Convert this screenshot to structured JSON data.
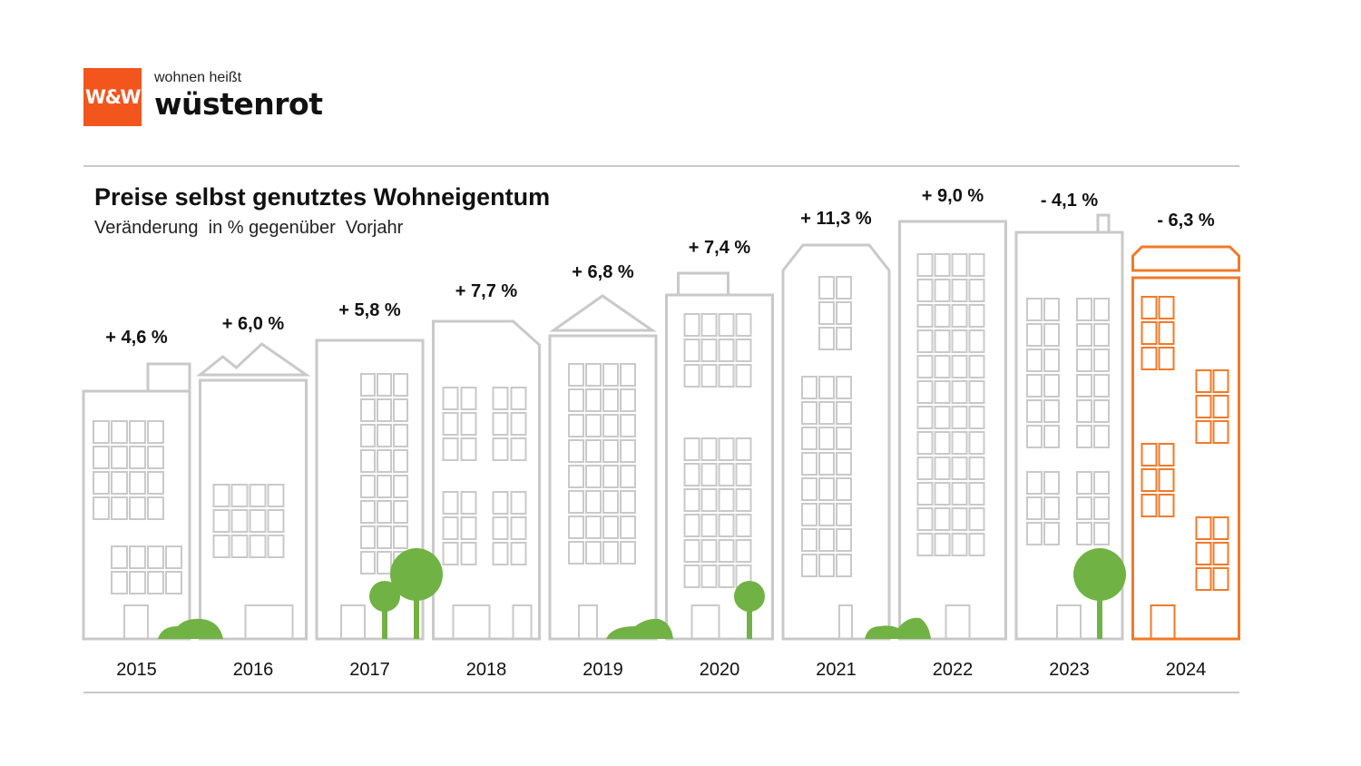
{
  "brand": {
    "tagline": "wohnen heißt",
    "name": "wüstenrot",
    "mark": "W&W",
    "color": "#f2561d"
  },
  "chart_data": {
    "type": "bar",
    "title": "Preise selbst genutztes Wohneigentum",
    "subtitle": "Veränderung  in % gegenüber  Vorjahr",
    "categories": [
      "2015",
      "2016",
      "2017",
      "2018",
      "2019",
      "2020",
      "2021",
      "2022",
      "2023",
      "2024"
    ],
    "values": [
      4.6,
      6.0,
      5.8,
      7.7,
      6.8,
      7.4,
      11.3,
      9.0,
      -4.1,
      -6.3
    ],
    "value_labels": [
      "+ 4,6 %",
      "+ 6,0 %",
      "+ 5,8 %",
      "+ 7,7 %",
      "+ 6,8 %",
      "+ 7,4 %",
      "+ 11,3 %",
      "+ 9,0 %",
      "- 4,1 %",
      "- 6,3 %"
    ],
    "unit": "%",
    "style": "buildings",
    "colors": {
      "default": "#c9c9c9",
      "highlight": "#f07a2a",
      "trees": "#71b244"
    },
    "highlight_category": "2024"
  }
}
